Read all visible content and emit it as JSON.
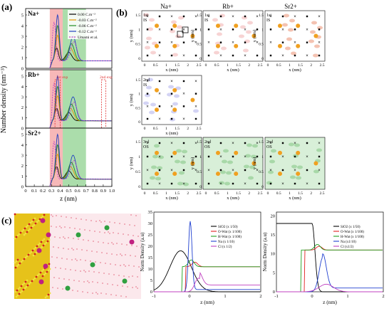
{
  "panel_labels": {
    "a": "(a)",
    "b": "(b)",
    "c": "(c)"
  },
  "panel_a": {
    "ion_labels": [
      "Na+",
      "Rb+",
      "Sr2+"
    ],
    "ylabel": "Number density (nm⁻³)",
    "xlabel": "z (nm)",
    "xticks": [
      "0",
      "0.1",
      "0.2",
      "0.3",
      "0.4",
      "0.5",
      "0.6",
      "0.7",
      "0.8",
      "0.9",
      "1.0"
    ],
    "yticks": [
      "0",
      "1",
      "2",
      "3",
      "4",
      "5"
    ],
    "legend": [
      "0.00 C.m⁻²",
      "-0.03 C.m⁻²",
      "-0.06 C.m⁻²",
      "-0.12 C.m⁻²",
      "Umami et al."
    ],
    "annotations": [
      "1st exp",
      "2nd exp"
    ],
    "colors": {
      "black": "#000000",
      "orange": "#e69500",
      "green": "#228b22",
      "blue": "#2040c0",
      "magenta": "#c040c0",
      "red_band": "#f4a0a0",
      "green_band": "#8fd28f",
      "dashed_red": "#e03030"
    }
  },
  "panel_b": {
    "column_titles": [
      "Na+",
      "Rb+",
      "Sr2+"
    ],
    "maps": [
      {
        "tag": "1st\nIS",
        "row": 0,
        "col": 0,
        "tint": "#e88080"
      },
      {
        "tag": "1st\nIS",
        "row": 0,
        "col": 1,
        "tint": "#e88080"
      },
      {
        "tag": "1st\nIS",
        "row": 0,
        "col": 2,
        "tint": "#e05020"
      },
      {
        "tag": "2nd\nIS",
        "row": 1,
        "col": 0,
        "tint": "#8080e0"
      },
      {
        "tag": "3rd\nOS",
        "row": 2,
        "col": 0,
        "tint": "#50b050"
      },
      {
        "tag": "2nd\nOS",
        "row": 2,
        "col": 1,
        "tint": "#50b050"
      },
      {
        "tag": "2nd\nOS",
        "row": 2,
        "col": 2,
        "tint": "#50b050"
      }
    ],
    "xlabel": "x (nm)",
    "ylabel": "y (nm)",
    "xticks": [
      "0",
      "0.5",
      "1",
      "1.5",
      "2",
      "2.5"
    ],
    "yticks": [
      "0",
      "0.5",
      "1",
      "1.5"
    ]
  },
  "panel_c": {
    "left_plot": {
      "xlabel": "z (nm)",
      "ylabel": "Norm Density (a.u)",
      "xticks": [
        "-1",
        "0",
        "1",
        "2"
      ],
      "yticks": [
        "0",
        "5",
        "10",
        "15",
        "20",
        "25",
        "30",
        "35"
      ],
      "legend": [
        "SiO2 (x 1/50)",
        "O-Wat (x 1/100)",
        "H-Wat (x 1/100)",
        "Na (x 1/10)",
        "Cl (x 1/2)"
      ]
    },
    "right_plot": {
      "xlabel": "z (nm)",
      "ylabel": "Norm Density (a.u)",
      "xticks": [
        "-1",
        "0",
        "1",
        "2"
      ],
      "yticks": [
        "0",
        "5",
        "10",
        "15",
        "20"
      ],
      "legend": [
        "SiO2 (x 1/50)",
        "O-Wat (x 1/100)",
        "H-Wat (x 1/100)",
        "Na (x1/10)",
        "Cl (x1/2)"
      ]
    },
    "series_colors": [
      "#000000",
      "#e02020",
      "#20a020",
      "#2040d0",
      "#c040c0"
    ]
  }
}
